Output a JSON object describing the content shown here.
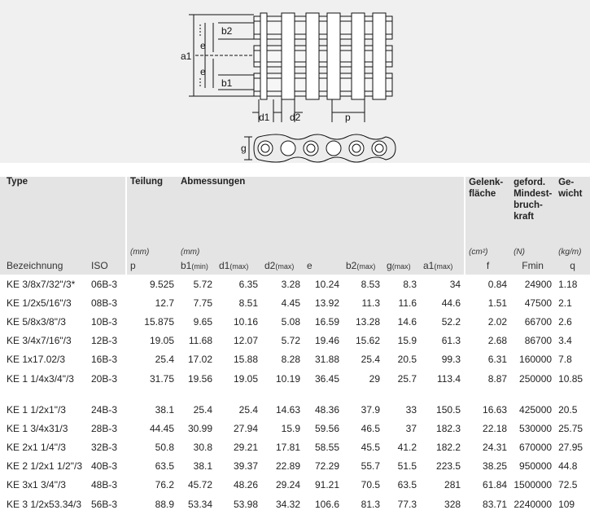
{
  "drawing": {
    "labels": {
      "b2": "b2",
      "e_top": "e",
      "a1": "a1",
      "e_bottom": "e",
      "b1": "b1",
      "d1": "d1",
      "d2": "d2",
      "p": "p",
      "g": "g"
    }
  },
  "header": {
    "type": "Type",
    "teilung": "Teilung",
    "abmessungen": "Abmessungen",
    "gelenkflaeche": "Gelenk-fläche",
    "bruchkraft": "geford. Mindest-bruch-kraft",
    "gewicht": "Ge-wicht"
  },
  "units": {
    "p": "(mm)",
    "abm": "(mm)",
    "f": "(cm²)",
    "fmin": "(N)",
    "q": "(kg/m)"
  },
  "columns": {
    "bezeichnung": "Bezeichnung",
    "iso": "ISO",
    "p": "p",
    "b1": "b1",
    "b1_sub": "(min)",
    "d1": "d1",
    "d1_sub": "(max)",
    "d2": "d2",
    "d2_sub": "(max)",
    "e": "e",
    "b2": "b2",
    "b2_sub": "(max)",
    "g": "g",
    "g_sub": "(max)",
    "a1": "a1",
    "a1_sub": "(max)",
    "f": "f",
    "fmin": "Fmin",
    "q": "q"
  },
  "rows": [
    [
      "KE 3/8x7/32\"/3*",
      "06B-3",
      "9.525",
      "5.72",
      "6.35",
      "3.28",
      "10.24",
      "8.53",
      "8.3",
      "34",
      "0.84",
      "24900",
      "1.18"
    ],
    [
      "KE 1/2x5/16\"/3",
      "08B-3",
      "12.7",
      "7.75",
      "8.51",
      "4.45",
      "13.92",
      "11.3",
      "11.6",
      "44.6",
      "1.51",
      "47500",
      "2.1"
    ],
    [
      "KE 5/8x3/8\"/3",
      "10B-3",
      "15.875",
      "9.65",
      "10.16",
      "5.08",
      "16.59",
      "13.28",
      "14.6",
      "52.2",
      "2.02",
      "66700",
      "2.6"
    ],
    [
      "KE 3/4x7/16\"/3",
      "12B-3",
      "19.05",
      "11.68",
      "12.07",
      "5.72",
      "19.46",
      "15.62",
      "15.9",
      "61.3",
      "2.68",
      "86700",
      "3.4"
    ],
    [
      "KE 1x17.02/3",
      "16B-3",
      "25.4",
      "17.02",
      "15.88",
      "8.28",
      "31.88",
      "25.4",
      "20.5",
      "99.3",
      "6.31",
      "160000",
      "7.8"
    ],
    [
      "KE 1 1/4x3/4\"/3",
      "20B-3",
      "31.75",
      "19.56",
      "19.05",
      "10.19",
      "36.45",
      "29",
      "25.7",
      "113.4",
      "8.87",
      "250000",
      "10.85"
    ],
    [
      "KE 1 1/2x1\"/3",
      "24B-3",
      "38.1",
      "25.4",
      "25.4",
      "14.63",
      "48.36",
      "37.9",
      "33",
      "150.5",
      "16.63",
      "425000",
      "20.5"
    ],
    [
      "KE 1 3/4x31/3",
      "28B-3",
      "44.45",
      "30.99",
      "27.94",
      "15.9",
      "59.56",
      "46.5",
      "37",
      "182.3",
      "22.18",
      "530000",
      "25.75"
    ],
    [
      "KE 2x1 1/4\"/3",
      "32B-3",
      "50.8",
      "30.8",
      "29.21",
      "17.81",
      "58.55",
      "45.5",
      "41.2",
      "182.2",
      "24.31",
      "670000",
      "27.95"
    ],
    [
      "KE 2 1/2x1 1/2\"/3",
      "40B-3",
      "63.5",
      "38.1",
      "39.37",
      "22.89",
      "72.29",
      "55.7",
      "51.5",
      "223.5",
      "38.25",
      "950000",
      "44.8"
    ],
    [
      "KE 3x1 3/4\"/3",
      "48B-3",
      "76.2",
      "45.72",
      "48.26",
      "29.24",
      "91.21",
      "70.5",
      "63.5",
      "281",
      "61.84",
      "1500000",
      "72.5"
    ],
    [
      "KE 3 1/2x53.34/3",
      "56B-3",
      "88.9",
      "53.34",
      "53.98",
      "34.32",
      "106.6",
      "81.3",
      "77.3",
      "328",
      "83.71",
      "2240000",
      "109"
    ]
  ]
}
